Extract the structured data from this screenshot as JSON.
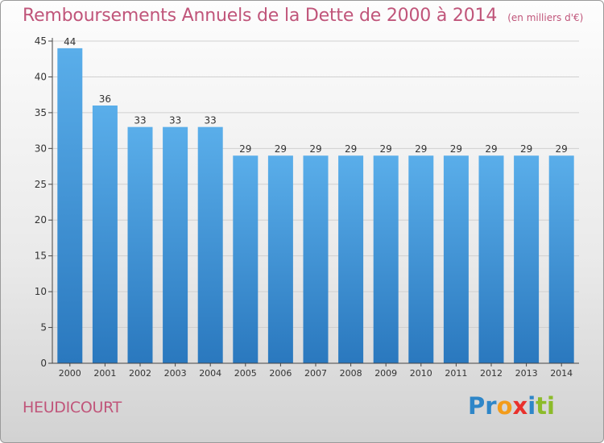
{
  "chart_data": {
    "type": "bar",
    "title": "Remboursements Annuels de la Dette de 2000 à 2014",
    "unit": "(en milliers d'€)",
    "categories": [
      "2000",
      "2001",
      "2002",
      "2003",
      "2004",
      "2005",
      "2006",
      "2007",
      "2008",
      "2009",
      "2010",
      "2011",
      "2012",
      "2013",
      "2014"
    ],
    "values": [
      44,
      36,
      33,
      33,
      33,
      29,
      29,
      29,
      29,
      29,
      29,
      29,
      29,
      29,
      29
    ],
    "ylim": [
      0,
      45
    ],
    "yticks": [
      0,
      5,
      10,
      15,
      20,
      25,
      30,
      35,
      40,
      45
    ],
    "xlabel": "",
    "ylabel": "",
    "grid": true
  },
  "footer": {
    "town": "HEUDICOURT",
    "logo": [
      "Pr",
      "o",
      "x",
      "i",
      "ti"
    ]
  },
  "colors": {
    "title": "#c0557a",
    "bar_light": "#5aaeea",
    "bar_dark": "#2a78be",
    "grid": "#d0d0d0"
  }
}
